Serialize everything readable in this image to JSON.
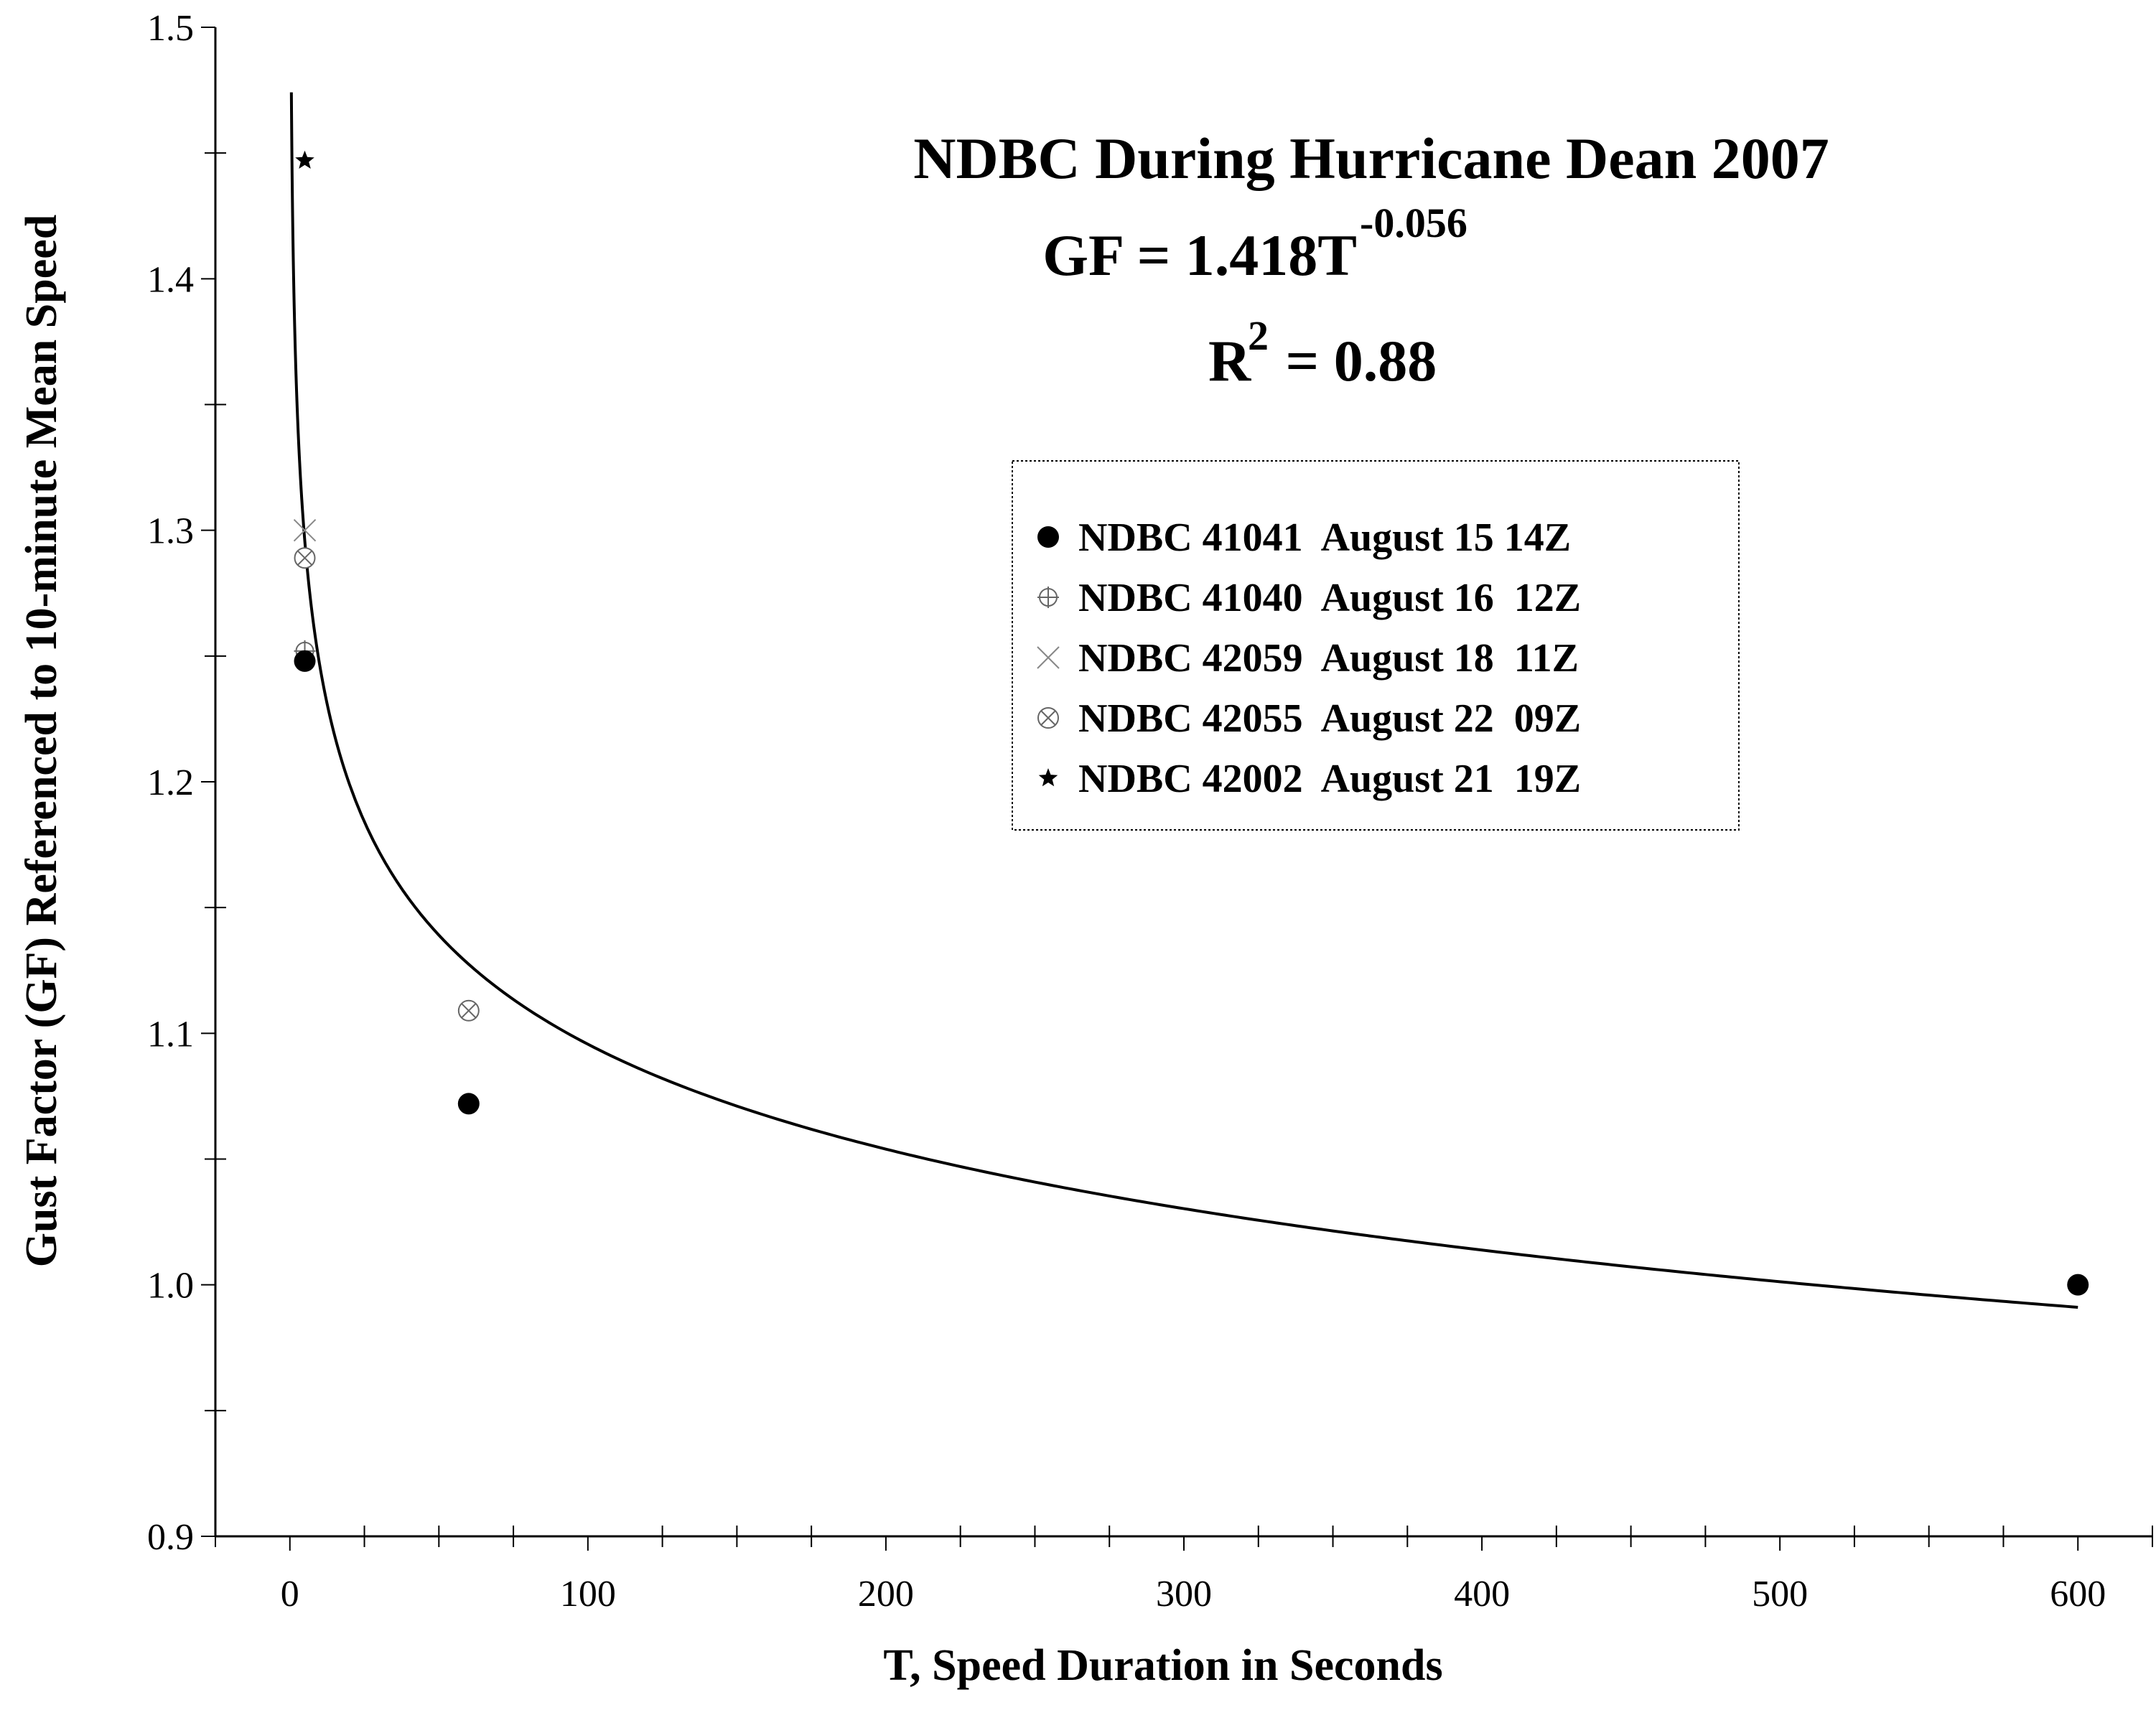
{
  "chart_data": {
    "type": "scatter",
    "title": "NDBC During Hurricane Dean 2007",
    "equation": {
      "lhs": "GF = 1.418T",
      "exponent": "-0.056",
      "coef": 1.418,
      "power": -0.056
    },
    "r_squared": {
      "base": "R",
      "exp": "2",
      "rest": " = 0.88"
    },
    "xlabel": "T, Speed Duration in Seconds",
    "ylabel": "Gust Factor (GF) Referenced to 10-minute Mean Speed",
    "xlim": [
      -25,
      625
    ],
    "ylim": [
      0.9,
      1.5
    ],
    "x_ticks": [
      {
        "value": 0,
        "label": "0"
      },
      {
        "value": 100,
        "label": "100"
      },
      {
        "value": 200,
        "label": "200"
      },
      {
        "value": 300,
        "label": "300"
      },
      {
        "value": 400,
        "label": "400"
      },
      {
        "value": 500,
        "label": "500"
      },
      {
        "value": 600,
        "label": "600"
      }
    ],
    "y_ticks": [
      {
        "value": 0.9,
        "label": "0.9"
      },
      {
        "value": 1.0,
        "label": "1.0"
      },
      {
        "value": 1.1,
        "label": "1.1"
      },
      {
        "value": 1.2,
        "label": "1.2"
      },
      {
        "value": 1.3,
        "label": "1.3"
      },
      {
        "value": 1.4,
        "label": "1.4"
      },
      {
        "value": 1.5,
        "label": "1.5"
      }
    ],
    "fit_curve": {
      "x_range": [
        0.5,
        600
      ]
    },
    "grid": false,
    "legend_position": "upper-right",
    "series": [
      {
        "name": "NDBC 41041  August 15 14Z",
        "marker": "filled-circle",
        "color": "#000000",
        "points": [
          {
            "x": 5,
            "y": 1.248
          },
          {
            "x": 60,
            "y": 1.072
          },
          {
            "x": 600,
            "y": 1.0
          }
        ]
      },
      {
        "name": "NDBC 41040  August 16  12Z",
        "marker": "cross-circle",
        "color": "#666666",
        "points": [
          {
            "x": 5,
            "y": 1.252
          }
        ]
      },
      {
        "name": "NDBC 42059  August 18  11Z",
        "marker": "x",
        "color": "#888888",
        "points": [
          {
            "x": 5,
            "y": 1.3
          }
        ]
      },
      {
        "name": "NDBC 42055  August 22  09Z",
        "marker": "x-circle",
        "color": "#666666",
        "points": [
          {
            "x": 5,
            "y": 1.289
          },
          {
            "x": 60,
            "y": 1.109
          }
        ]
      },
      {
        "name": "NDBC 42002  August 21  19Z",
        "marker": "star",
        "color": "#000000",
        "points": [
          {
            "x": 5,
            "y": 1.447
          }
        ]
      }
    ]
  }
}
